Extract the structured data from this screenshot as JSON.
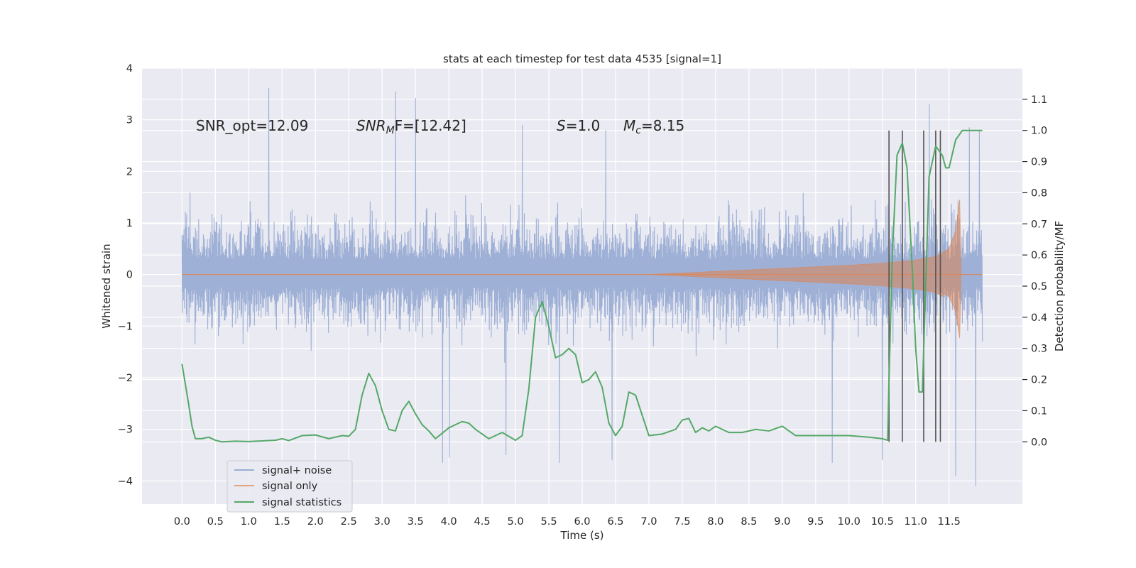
{
  "chart_data": {
    "type": "line",
    "title": "stats at each timestep for test data 4535 [signal=1]",
    "xlabel": "Time (s)",
    "ylabel": "Whitened strain",
    "ylabel_right": "Detection probability/MF",
    "xlim": [
      -0.6,
      12.6
    ],
    "ylim": [
      -4.45,
      4.0
    ],
    "ylim_right": [
      -0.2,
      1.2
    ],
    "x_ticks": [
      "0.0",
      "0.5",
      "1.0",
      "1.5",
      "2.0",
      "2.5",
      "3.0",
      "3.5",
      "4.0",
      "4.5",
      "5.0",
      "5.5",
      "6.0",
      "6.5",
      "7.0",
      "7.5",
      "8.0",
      "8.5",
      "9.0",
      "9.5",
      "10.0",
      "10.5",
      "11.0",
      "11.5"
    ],
    "y_ticks": [
      "4",
      "3",
      "2",
      "1",
      "0",
      "−1",
      "−2",
      "−3",
      "−4"
    ],
    "y_ticks_right": [
      "1.1",
      "1.0",
      "0.9",
      "0.8",
      "0.7",
      "0.6",
      "0.5",
      "0.4",
      "0.3",
      "0.2",
      "0.1",
      "0.0"
    ],
    "annotations": {
      "snr_opt": "SNR_opt=12.09",
      "snr_mf_var": "SNR",
      "snr_mf_sub": "M",
      "snr_mf_rest": "F=[12.42]",
      "s_var": "S",
      "s_rest": "=1.0",
      "mc_var": "M",
      "mc_sub": "c",
      "mc_rest": "=8.15"
    },
    "series": [
      {
        "name": "signal+ noise",
        "color": "#9aadd4",
        "axis": "left",
        "envelope": {
          "x_range": [
            0.0,
            12.0
          ],
          "typical_upper": 2.0,
          "typical_lower": -1.7,
          "peaks": [
            [
              1.3,
              3.62
            ],
            [
              3.2,
              3.55
            ],
            [
              3.5,
              3.42
            ],
            [
              11.2,
              3.3
            ],
            [
              5.1,
              2.9
            ],
            [
              11.8,
              2.85
            ],
            [
              6.35,
              2.8
            ],
            [
              11.95,
              2.8
            ]
          ],
          "troughs": [
            [
              11.9,
              -4.1
            ],
            [
              11.6,
              -3.9
            ],
            [
              5.65,
              -3.65
            ],
            [
              3.9,
              -3.65
            ],
            [
              4.0,
              -3.55
            ],
            [
              10.5,
              -3.6
            ],
            [
              9.75,
              -3.65
            ],
            [
              4.85,
              -3.5
            ],
            [
              6.45,
              -3.6
            ]
          ]
        }
      },
      {
        "name": "signal only",
        "color": "#dd8452",
        "axis": "left",
        "chirp": {
          "x": [
            0.0,
            7.0,
            8.0,
            9.0,
            10.0,
            10.5,
            11.0,
            11.3,
            11.5,
            11.6,
            11.67,
            11.68,
            12.0
          ],
          "amplitude": [
            0.0,
            0.0,
            0.06,
            0.12,
            0.18,
            0.22,
            0.28,
            0.35,
            0.5,
            0.85,
            1.55,
            0.0,
            0.0
          ]
        }
      },
      {
        "name": "signal statistics",
        "color": "#55a868",
        "axis": "right",
        "x": [
          0.0,
          0.1,
          0.15,
          0.2,
          0.3,
          0.4,
          0.5,
          0.6,
          0.8,
          1.0,
          1.2,
          1.4,
          1.5,
          1.6,
          1.8,
          2.0,
          2.2,
          2.4,
          2.5,
          2.6,
          2.7,
          2.8,
          2.9,
          3.0,
          3.1,
          3.2,
          3.3,
          3.4,
          3.5,
          3.6,
          3.7,
          3.8,
          4.0,
          4.2,
          4.3,
          4.4,
          4.6,
          4.8,
          5.0,
          5.1,
          5.2,
          5.3,
          5.4,
          5.5,
          5.6,
          5.7,
          5.8,
          5.9,
          6.0,
          6.1,
          6.2,
          6.3,
          6.4,
          6.5,
          6.6,
          6.7,
          6.8,
          7.0,
          7.2,
          7.4,
          7.5,
          7.6,
          7.7,
          7.8,
          7.9,
          8.0,
          8.1,
          8.2,
          8.4,
          8.6,
          8.8,
          9.0,
          9.2,
          9.5,
          10.0,
          10.3,
          10.5,
          10.58,
          10.6,
          10.65,
          10.72,
          10.8,
          10.87,
          10.95,
          11.0,
          11.05,
          11.1,
          11.15,
          11.2,
          11.3,
          11.4,
          11.45,
          11.5,
          11.6,
          11.7,
          11.8,
          11.9,
          12.0
        ],
        "values": [
          0.25,
          0.12,
          0.05,
          0.01,
          0.01,
          0.015,
          0.005,
          0.0,
          0.002,
          0.001,
          0.003,
          0.005,
          0.01,
          0.004,
          0.02,
          0.022,
          0.01,
          0.02,
          0.018,
          0.04,
          0.15,
          0.22,
          0.18,
          0.1,
          0.04,
          0.035,
          0.1,
          0.13,
          0.09,
          0.055,
          0.035,
          0.01,
          0.045,
          0.065,
          0.06,
          0.04,
          0.01,
          0.03,
          0.005,
          0.02,
          0.17,
          0.4,
          0.45,
          0.37,
          0.27,
          0.28,
          0.3,
          0.28,
          0.19,
          0.2,
          0.225,
          0.175,
          0.06,
          0.02,
          0.05,
          0.16,
          0.15,
          0.02,
          0.025,
          0.04,
          0.07,
          0.075,
          0.03,
          0.045,
          0.035,
          0.05,
          0.04,
          0.03,
          0.03,
          0.04,
          0.035,
          0.05,
          0.02,
          0.02,
          0.02,
          0.015,
          0.01,
          0.005,
          0.2,
          0.6,
          0.92,
          0.96,
          0.88,
          0.55,
          0.3,
          0.16,
          0.16,
          0.5,
          0.85,
          0.95,
          0.92,
          0.88,
          0.88,
          0.97,
          1.0,
          1.0,
          1.0,
          1.0
        ]
      }
    ],
    "vertical_lines": [
      10.6,
      10.8,
      11.12,
      11.3,
      11.37
    ],
    "vertical_lines_range_right": [
      0.0,
      1.0
    ],
    "vertical_line_color": "#555555",
    "legend_location": "lower-left",
    "grid": true
  }
}
